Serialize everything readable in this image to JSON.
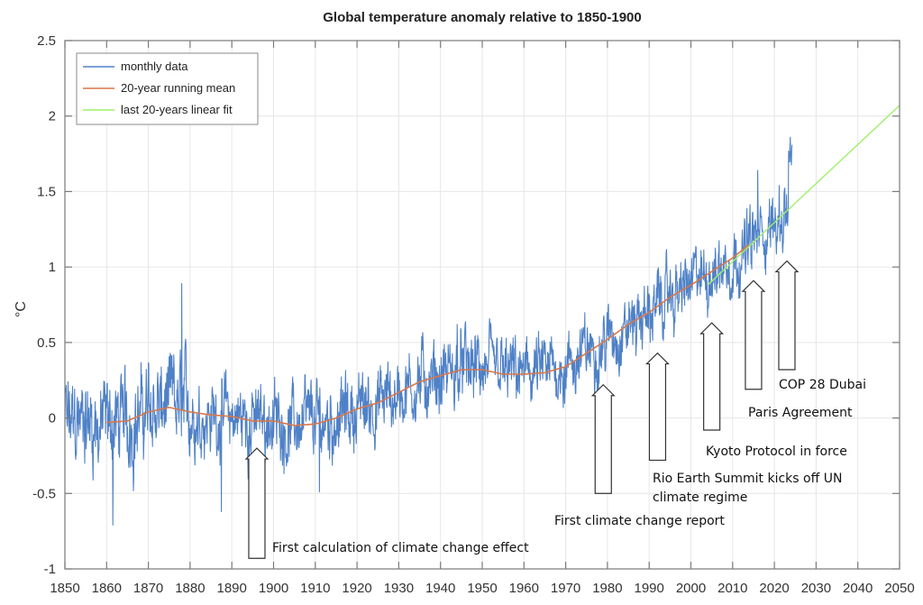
{
  "chart_data": {
    "type": "line",
    "title": "Global temperature anomaly relative to 1850-1900",
    "xlabel": "",
    "ylabel": "°C",
    "xlim": [
      1850,
      2050
    ],
    "ylim": [
      -1,
      2.5
    ],
    "grid": true,
    "x_ticks": [
      1850,
      1860,
      1870,
      1880,
      1890,
      1900,
      1910,
      1920,
      1930,
      1940,
      1950,
      1960,
      1970,
      1980,
      1990,
      2000,
      2010,
      2020,
      2030,
      2040,
      2050
    ],
    "y_ticks": [
      -1,
      -0.5,
      0,
      0.5,
      1,
      1.5,
      2,
      2.5
    ],
    "y_tick_labels": [
      "-1",
      "-0.5",
      "0",
      "0.5",
      "1",
      "1.5",
      "2",
      "2.5"
    ],
    "legend": {
      "placement": "top-left",
      "entries": [
        {
          "label": "monthly data",
          "color": "#4f81c7"
        },
        {
          "label": "20-year running mean",
          "color": "#d9774a"
        },
        {
          "label": "last 20-years linear fit",
          "color": "#9ef06a"
        }
      ]
    },
    "series": [
      {
        "name": "monthly data",
        "color": "#4f81c7",
        "x_range": [
          1850,
          2024.3
        ],
        "note": "monthly anomalies fluctuating around the running mean; notable extremes",
        "extremes": [
          {
            "x": 1861.5,
            "y": -0.71
          },
          {
            "x": 1878.0,
            "y": 0.89
          },
          {
            "x": 1887.5,
            "y": -0.62
          },
          {
            "x": 1911.0,
            "y": -0.49
          },
          {
            "x": 1944.0,
            "y": 0.62
          },
          {
            "x": 2016.0,
            "y": 1.64
          },
          {
            "x": 2023.8,
            "y": 1.86
          }
        ]
      },
      {
        "name": "20-year running mean",
        "color": "#d9774a",
        "x": [
          1860,
          1865,
          1870,
          1875,
          1880,
          1885,
          1890,
          1895,
          1900,
          1905,
          1910,
          1915,
          1920,
          1925,
          1930,
          1935,
          1940,
          1945,
          1950,
          1955,
          1960,
          1965,
          1970,
          1975,
          1980,
          1985,
          1990,
          1995,
          2000,
          2005,
          2010,
          2014
        ],
        "values": [
          -0.03,
          -0.02,
          0.04,
          0.07,
          0.04,
          0.02,
          0.01,
          -0.02,
          -0.02,
          -0.05,
          -0.04,
          0.0,
          0.06,
          0.1,
          0.17,
          0.24,
          0.28,
          0.32,
          0.32,
          0.29,
          0.29,
          0.3,
          0.34,
          0.43,
          0.52,
          0.62,
          0.7,
          0.8,
          0.88,
          0.97,
          1.06,
          1.15
        ]
      },
      {
        "name": "last 20-years linear fit",
        "color": "#9ef06a",
        "x": [
          2004,
          2050
        ],
        "values": [
          0.88,
          2.07
        ]
      }
    ],
    "annotations": [
      {
        "label": "First calculation of climate change effect",
        "year": 1896,
        "arrow_tip": -0.2,
        "arrow_base": -0.93,
        "text_lines": [
          "First calculation of climate change effect"
        ]
      },
      {
        "label": "First climate change report",
        "year": 1979,
        "arrow_tip": 0.22,
        "arrow_base": -0.5,
        "text_lines": [
          "First climate change report"
        ]
      },
      {
        "label": "Rio Earth Summit kicks off UN climate regime",
        "year": 1992,
        "arrow_tip": 0.43,
        "arrow_base": -0.28,
        "text_lines": [
          "Rio Earth Summit kicks off UN",
          "climate regime"
        ]
      },
      {
        "label": "Kyoto Protocol in force",
        "year": 2005,
        "arrow_tip": 0.63,
        "arrow_base": -0.08,
        "text_lines": [
          "Kyoto Protocol in force"
        ]
      },
      {
        "label": "Paris Agreement",
        "year": 2015,
        "arrow_tip": 0.91,
        "arrow_base": 0.19,
        "text_lines": [
          "Paris Agreement"
        ]
      },
      {
        "label": "COP 28 Dubai",
        "year": 2023,
        "arrow_tip": 1.04,
        "arrow_base": 0.32,
        "text_lines": [
          "COP 28 Dubai"
        ]
      }
    ]
  }
}
